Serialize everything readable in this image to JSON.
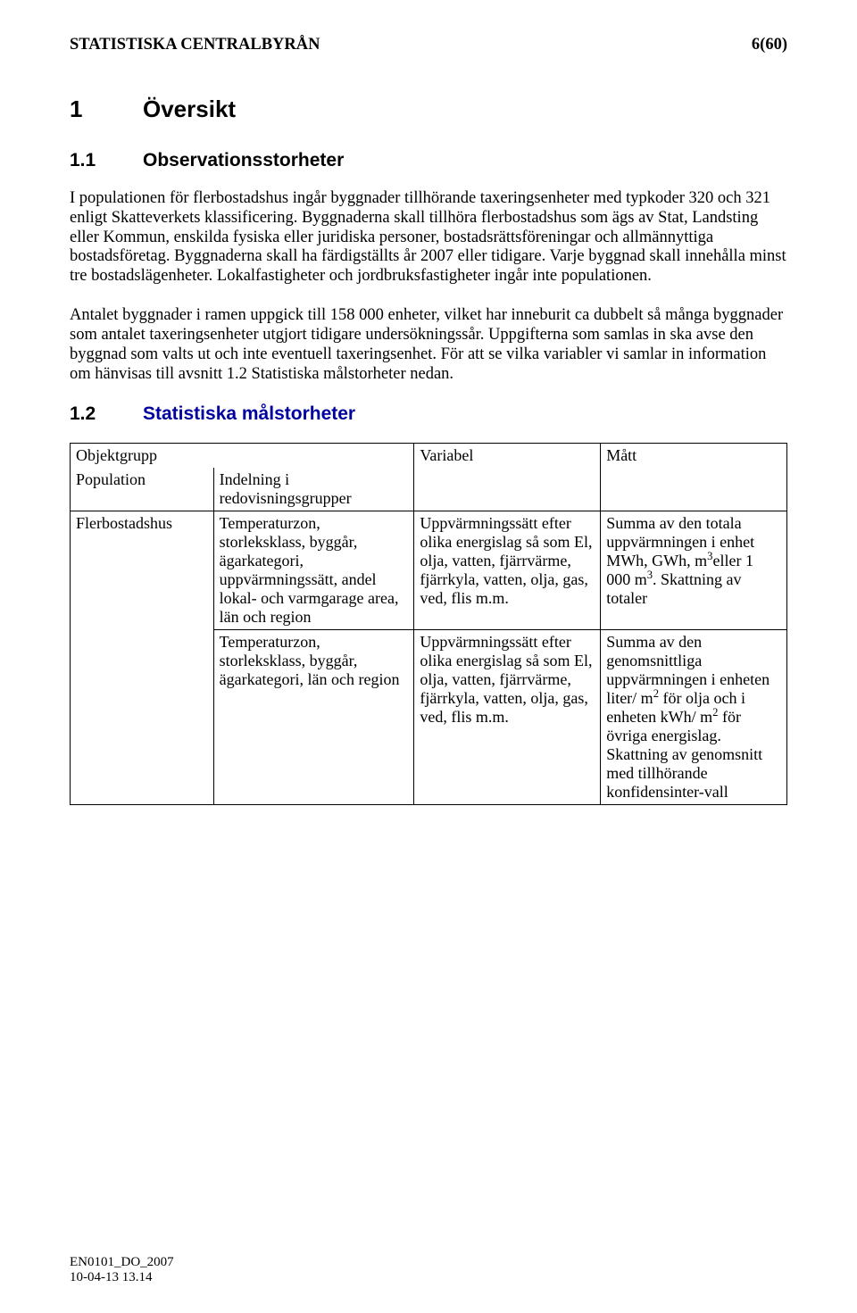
{
  "header": {
    "left": "STATISTISKA CENTRALBYRÅN",
    "right": "6(60)"
  },
  "h1": {
    "num": "1",
    "title": "Översikt"
  },
  "h2a": {
    "num": "1.1",
    "title": "Observationsstorheter"
  },
  "para1": "I populationen för flerbostadshus ingår byggnader tillhörande taxeringsenheter med typkoder 320 och 321 enligt Skatteverkets klassificering. Byggnaderna skall tillhöra flerbostadshus som ägs av Stat, Landsting eller Kommun, enskilda fysiska eller juridiska personer, bostadsrättsföreningar och allmännyttiga bostadsföretag. Byggnaderna skall ha färdigställts år 2007 eller tidigare. Varje byggnad skall innehålla minst tre bostadslägenheter. Lokalfastigheter och jordbruksfastigheter ingår inte populationen.",
  "para2": "Antalet byggnader i ramen uppgick till 158 000 enheter, vilket har inneburit ca dubbelt så många byggnader som antalet taxeringsenheter utgjort tidigare undersökningssår. Uppgifterna som samlas in ska avse den byggnad som valts ut och inte eventuell taxeringsenhet. För att se vilka variabler vi samlar in information om hänvisas till avsnitt 1.2 Statistiska målstorheter nedan.",
  "h2b": {
    "num": "1.2",
    "title": "Statistiska målstorheter"
  },
  "table": {
    "headers": {
      "objektgrupp": "Objektgrupp",
      "variabel": "Variabel",
      "matt": "Mått",
      "population": "Population",
      "indelning": "Indelning i redovisningsgrupper"
    },
    "rows": [
      {
        "population": "Flerbostadshus",
        "indelning": "Temperaturzon, storleksklass, byggår, ägarkategori, uppvärmningssätt, andel lokal- och varmgarage area, län och region",
        "variabel": "Uppvärmningssätt efter olika energislag så som El, olja, vatten, fjärrvärme, fjärrkyla, vatten, olja, gas, ved, flis m.m.",
        "matt_pre": "Summa av den totala uppvärmningen i enhet MWh, GWh, m",
        "matt_sup1": "3",
        "matt_mid": "eller 1 000 m",
        "matt_sup2": "3",
        "matt_post": ". Skattning av totaler"
      },
      {
        "population": "",
        "indelning": "Temperaturzon, storleksklass, byggår, ägarkategori, län och region",
        "variabel": "Uppvärmningssätt efter olika energislag så som El, olja, vatten, fjärrvärme, fjärrkyla, vatten, olja, gas, ved, flis m.m.",
        "matt_pre": "Summa av den genomsnittliga uppvärmningen i enheten liter/ m",
        "matt_sup1": "2",
        "matt_mid": " för olja och i enheten kWh/ m",
        "matt_sup2": "2",
        "matt_post": " för övriga energislag. Skattning av genomsnitt med tillhörande konfidensinter-vall"
      }
    ]
  },
  "footer": {
    "line1": "EN0101_DO_2007",
    "line2": "10-04-13 13.14"
  },
  "layout": {
    "col_widths": [
      "20%",
      "28%",
      "26%",
      "26%"
    ]
  },
  "colors": {
    "heading_blue": "#0000a0",
    "text": "#000000",
    "background": "#ffffff",
    "border": "#000000"
  }
}
